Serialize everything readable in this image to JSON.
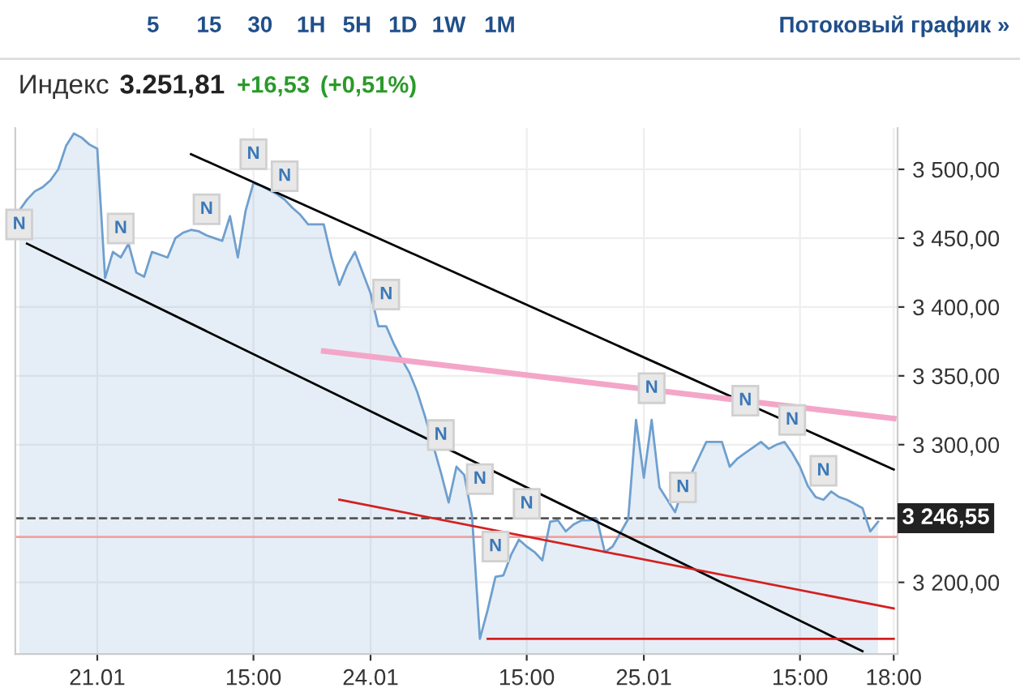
{
  "chart_data": {
    "type": "area",
    "title": "Индекс",
    "subtitle": "3.251,81",
    "annotations": [
      "5",
      "15",
      "30",
      "1H",
      "5H",
      "1D",
      "1W",
      "1M",
      "Потоковый график »",
      "+16,53",
      "(+0,51%)"
    ],
    "categories": [
      null,
      null,
      null,
      null,
      null,
      null,
      null,
      null,
      null,
      null,
      "21.01",
      null,
      null,
      null,
      null,
      null,
      null,
      null,
      null,
      null,
      null,
      null,
      null,
      null,
      null,
      null,
      null,
      null,
      null,
      null,
      "15:00",
      null,
      null,
      null,
      null,
      null,
      null,
      null,
      null,
      null,
      null,
      null,
      null,
      null,
      null,
      "24.01",
      null,
      null,
      null,
      null,
      null,
      null,
      null,
      null,
      null,
      null,
      null,
      null,
      null,
      null,
      null,
      null,
      null,
      null,
      null,
      "15:00",
      null,
      null,
      null,
      null,
      null,
      null,
      null,
      null,
      null,
      null,
      null,
      null,
      null,
      null,
      "25.01",
      null,
      null,
      null,
      null,
      null,
      null,
      null,
      null,
      null,
      null,
      null,
      null,
      null,
      null,
      null,
      null,
      null,
      null,
      null,
      "15:00",
      null,
      null,
      null,
      null,
      null,
      null,
      null,
      null,
      null,
      null,
      null,
      "18:00"
    ],
    "series": [
      {
        "color": "#6f9fcf",
        "values": [
          3470,
          3478,
          3484,
          3487,
          3492,
          3500,
          3517,
          3526,
          3523,
          3518,
          3515,
          3421,
          3440,
          3436,
          3446,
          3425,
          3422,
          3440,
          3438,
          3436,
          3450,
          3454,
          3456,
          3455,
          3452,
          3450,
          3448,
          3466,
          3436,
          3470,
          3490,
          3488,
          3485,
          3482,
          3478,
          3472,
          3467,
          3460,
          3460,
          3460,
          3436,
          3416,
          3430,
          3440,
          3425,
          3410,
          3386,
          3386,
          3373,
          3362,
          3352,
          3338,
          3320,
          3300,
          3280,
          3258,
          3284,
          3278,
          3248,
          3159,
          3180,
          3204,
          3205,
          3220,
          3231,
          3226,
          3222,
          3216,
          3244,
          3245,
          3237,
          3242,
          3245,
          3245,
          3246,
          3222,
          3226,
          3236,
          3246,
          3318,
          3276,
          3318,
          3269,
          3260,
          3251,
          3268,
          3278,
          3290,
          3302,
          3302,
          3302,
          3284,
          3290,
          3294,
          3298,
          3302,
          3297,
          3300,
          3302,
          3294,
          3284,
          3270,
          3262,
          3260,
          3266,
          3262,
          3260,
          3257,
          3254,
          3237,
          3244,
          null,
          null
        ]
      },
      {
        "type": "line",
        "color": "#000000",
        "values": [
          null,
          null,
          null,
          null,
          null,
          null,
          null,
          null,
          null,
          null,
          null,
          null,
          null,
          null,
          null,
          null,
          null,
          null,
          null,
          null,
          null,
          null,
          3511,
          null,
          null,
          null,
          null,
          null,
          null,
          null,
          null,
          null,
          null,
          null,
          null,
          null,
          null,
          null,
          null,
          null,
          null,
          null,
          null,
          null,
          null,
          null,
          null,
          null,
          null,
          null,
          null,
          null,
          null,
          null,
          null,
          null,
          null,
          null,
          null,
          null,
          null,
          null,
          null,
          null,
          null,
          null,
          null,
          null,
          null,
          null,
          null,
          null,
          null,
          null,
          null,
          null,
          null,
          null,
          null,
          null,
          null,
          null,
          null,
          null,
          null,
          null,
          null,
          null,
          null,
          null,
          null,
          null,
          null,
          null,
          null,
          null,
          null,
          null,
          null,
          null,
          null,
          null,
          null,
          null,
          null,
          null,
          null,
          null,
          null,
          null,
          null,
          null,
          3282
        ]
      },
      {
        "type": "line",
        "color": "#000000",
        "values": [
          null,
          3446,
          null,
          null,
          null,
          null,
          null,
          null,
          null,
          null,
          null,
          null,
          null,
          null,
          null,
          null,
          null,
          null,
          null,
          null,
          null,
          null,
          null,
          null,
          null,
          null,
          null,
          null,
          null,
          null,
          null,
          null,
          null,
          null,
          null,
          null,
          null,
          null,
          null,
          null,
          null,
          null,
          null,
          null,
          null,
          null,
          null,
          null,
          null,
          null,
          null,
          null,
          null,
          null,
          null,
          null,
          null,
          null,
          null,
          null,
          null,
          null,
          null,
          null,
          null,
          null,
          null,
          null,
          null,
          null,
          null,
          null,
          null,
          null,
          null,
          null,
          null,
          null,
          null,
          null,
          null,
          null,
          null,
          null,
          null,
          null,
          null,
          null,
          null,
          null,
          null,
          null,
          null,
          null,
          null,
          null,
          null,
          null,
          null,
          null,
          null,
          null,
          null,
          null,
          null,
          null,
          null,
          null,
          3150,
          null,
          null,
          null,
          null
        ]
      },
      {
        "type": "line",
        "color": "#f4a6c8",
        "values": [
          null,
          null,
          null,
          null,
          null,
          null,
          null,
          null,
          null,
          null,
          null,
          null,
          null,
          null,
          null,
          null,
          null,
          null,
          null,
          null,
          null,
          null,
          null,
          null,
          null,
          null,
          null,
          null,
          null,
          null,
          null,
          null,
          null,
          null,
          null,
          null,
          null,
          null,
          null,
          3368,
          null,
          null,
          null,
          null,
          null,
          null,
          null,
          null,
          null,
          null,
          null,
          null,
          null,
          null,
          null,
          null,
          null,
          null,
          null,
          null,
          null,
          null,
          null,
          null,
          null,
          null,
          null,
          null,
          null,
          null,
          null,
          null,
          null,
          null,
          null,
          null,
          null,
          null,
          null,
          null,
          null,
          null,
          null,
          null,
          null,
          null,
          null,
          null,
          null,
          null,
          null,
          null,
          null,
          null,
          null,
          null,
          null,
          null,
          null,
          null,
          null,
          null,
          null,
          null,
          null,
          null,
          null,
          null,
          null,
          null,
          null,
          null,
          3319
        ]
      },
      {
        "type": "line",
        "color": "#d42020",
        "values": [
          null,
          null,
          null,
          null,
          null,
          null,
          null,
          null,
          null,
          null,
          null,
          null,
          null,
          null,
          null,
          null,
          null,
          null,
          null,
          null,
          null,
          null,
          null,
          null,
          null,
          null,
          null,
          null,
          null,
          null,
          null,
          null,
          null,
          null,
          null,
          null,
          null,
          null,
          null,
          null,
          null,
          3260,
          null,
          null,
          null,
          null,
          null,
          null,
          null,
          null,
          null,
          null,
          null,
          null,
          null,
          null,
          null,
          null,
          null,
          null,
          null,
          null,
          null,
          null,
          null,
          null,
          null,
          null,
          null,
          null,
          null,
          null,
          null,
          null,
          null,
          null,
          null,
          null,
          null,
          null,
          null,
          null,
          null,
          null,
          null,
          null,
          null,
          null,
          null,
          null,
          null,
          null,
          null,
          null,
          null,
          null,
          null,
          null,
          null,
          null,
          null,
          null,
          null,
          null,
          null,
          null,
          null,
          null,
          null,
          null,
          null,
          null,
          3181
        ]
      },
      {
        "type": "scatter",
        "marker": "square",
        "color": "#e8e8e8",
        "values": [
          3460,
          null,
          null,
          null,
          null,
          null,
          null,
          null,
          null,
          null,
          null,
          null,
          null,
          3457,
          null,
          null,
          null,
          null,
          null,
          null,
          null,
          null,
          null,
          null,
          3471,
          null,
          null,
          null,
          null,
          null,
          3511,
          null,
          null,
          null,
          3495,
          null,
          null,
          null,
          null,
          null,
          null,
          null,
          null,
          null,
          null,
          null,
          null,
          3409,
          null,
          null,
          null,
          null,
          null,
          null,
          3307,
          null,
          null,
          null,
          null,
          3275,
          null,
          3226,
          null,
          null,
          null,
          3257,
          null,
          null,
          null,
          null,
          null,
          null,
          null,
          null,
          null,
          null,
          null,
          null,
          null,
          null,
          null,
          3341,
          null,
          null,
          null,
          3269,
          null,
          null,
          null,
          null,
          null,
          null,
          null,
          3332,
          null,
          null,
          null,
          null,
          null,
          3318,
          null,
          null,
          null,
          3281,
          null,
          null,
          null,
          null,
          null,
          null,
          null,
          null,
          null
        ],
        "value_labels": [
          "N",
          null,
          null,
          null,
          null,
          null,
          null,
          null,
          null,
          null,
          null,
          null,
          null,
          "N",
          null,
          null,
          null,
          null,
          null,
          null,
          null,
          null,
          null,
          null,
          "N",
          null,
          null,
          null,
          null,
          null,
          "N",
          null,
          null,
          null,
          "N",
          null,
          null,
          null,
          null,
          null,
          null,
          null,
          null,
          null,
          null,
          null,
          null,
          "N",
          null,
          null,
          null,
          null,
          null,
          null,
          "N",
          null,
          null,
          null,
          null,
          "N",
          null,
          "N",
          null,
          null,
          null,
          "N",
          null,
          null,
          null,
          null,
          null,
          null,
          null,
          null,
          null,
          null,
          null,
          null,
          null,
          null,
          null,
          "N",
          null,
          null,
          null,
          "N",
          null,
          null,
          null,
          null,
          null,
          null,
          null,
          "N",
          null,
          null,
          null,
          null,
          null,
          "N",
          null,
          null,
          null,
          "N",
          null,
          null,
          null,
          null,
          null,
          null,
          null,
          null,
          null
        ]
      },
      {
        "type": "line",
        "color": "#d42020",
        "values": [
          null,
          null,
          null,
          null,
          null,
          null,
          null,
          null,
          null,
          null,
          null,
          null,
          null,
          null,
          null,
          null,
          null,
          null,
          null,
          null,
          null,
          null,
          null,
          null,
          null,
          null,
          null,
          null,
          null,
          null,
          null,
          null,
          null,
          null,
          null,
          null,
          null,
          null,
          null,
          null,
          null,
          null,
          null,
          null,
          null,
          null,
          null,
          null,
          null,
          null,
          null,
          null,
          null,
          null,
          null,
          null,
          null,
          null,
          null,
          null,
          3159,
          null,
          null,
          null,
          null,
          null,
          null,
          null,
          null,
          null,
          null,
          null,
          null,
          null,
          null,
          null,
          null,
          null,
          null,
          null,
          null,
          null,
          null,
          null,
          null,
          null,
          null,
          null,
          null,
          null,
          null,
          null,
          null,
          null,
          null,
          null,
          null,
          null,
          null,
          null,
          null,
          null,
          null,
          null,
          null,
          null,
          null,
          null,
          null,
          null,
          null,
          null,
          3159
        ]
      }
    ],
    "ref_lines": [
      {
        "axis": "y",
        "value": 3246.55,
        "label": "3 246,55",
        "color": "#555555",
        "line_style": "dashed"
      },
      {
        "axis": "y",
        "value": 3233,
        "color": "#f2a0a0",
        "line_style": "solid"
      }
    ],
    "ylim": [
      3148,
      3530
    ],
    "yticks": [
      {
        "value": 3200,
        "label": "3 200,00"
      },
      {
        "value": 3300,
        "label": "3 300,00"
      },
      {
        "value": 3350,
        "label": "3 350,00"
      },
      {
        "value": 3400,
        "label": "3 400,00"
      },
      {
        "value": 3450,
        "label": "3 450,00"
      },
      {
        "value": 3500,
        "label": "3 500,00"
      }
    ],
    "grid": true
  }
}
